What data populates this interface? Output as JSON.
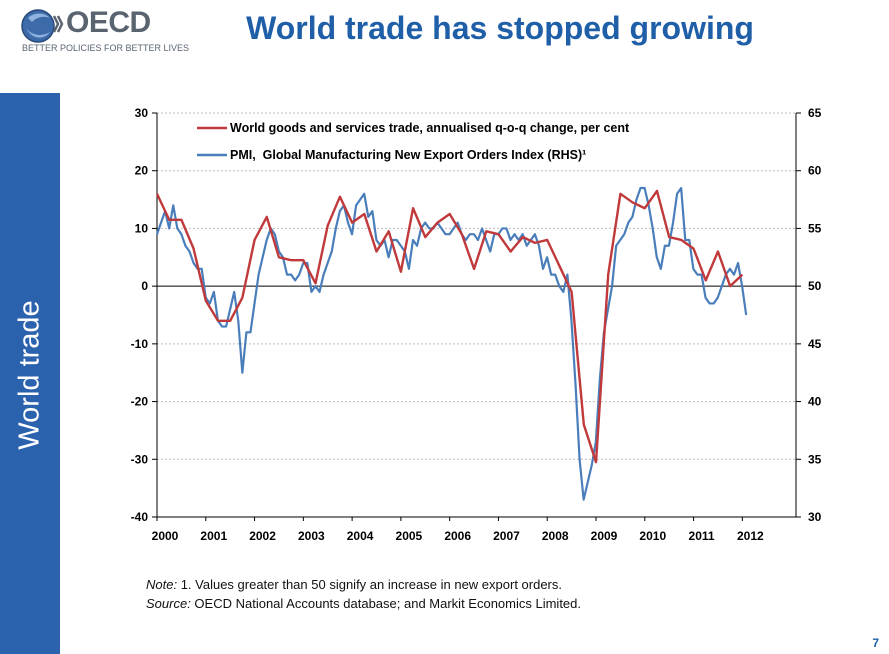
{
  "header": {
    "logo_text": "OECD",
    "logo_tagline": "BETTER POLICIES FOR BETTER LIVES",
    "title": "World trade has stopped growing"
  },
  "sidebar": {
    "label": "World trade"
  },
  "colors": {
    "red_series": "#c0393b",
    "blue_series": "#4a7ebb",
    "accent": "#2b62ad"
  },
  "chart_data": {
    "type": "line",
    "title": "",
    "xlabel": "",
    "ylabel": "",
    "x_ticks": [
      "2000",
      "2001",
      "2002",
      "2003",
      "2004",
      "2005",
      "2006",
      "2007",
      "2008",
      "2009",
      "2010",
      "2011",
      "2012"
    ],
    "y_left": {
      "min": -40,
      "max": 30,
      "ticks": [
        "30",
        "20",
        "10",
        "0",
        "-10",
        "-20",
        "-30",
        "-40"
      ]
    },
    "y_right": {
      "min": 30,
      "max": 65,
      "ticks": [
        "65",
        "60",
        "55",
        "50",
        "45",
        "40",
        "35",
        "30"
      ]
    },
    "legend_position": "top",
    "series": [
      {
        "name": "World goods and services trade, annualised q-o-q change, per cent",
        "axis": "left",
        "frequency": "quarterly",
        "x": [
          2000.0,
          2000.25,
          2000.5,
          2000.75,
          2001.0,
          2001.25,
          2001.5,
          2001.75,
          2002.0,
          2002.25,
          2002.5,
          2002.75,
          2003.0,
          2003.25,
          2003.5,
          2003.75,
          2004.0,
          2004.25,
          2004.5,
          2004.75,
          2005.0,
          2005.25,
          2005.5,
          2005.75,
          2006.0,
          2006.25,
          2006.5,
          2006.75,
          2007.0,
          2007.25,
          2007.5,
          2007.75,
          2008.0,
          2008.25,
          2008.5,
          2008.75,
          2009.0,
          2009.25,
          2009.5,
          2009.75,
          2010.0,
          2010.25,
          2010.5,
          2010.75,
          2011.0,
          2011.25,
          2011.5,
          2011.75,
          2012.0
        ],
        "values": [
          16,
          11.5,
          11.5,
          6.5,
          -2.5,
          -6,
          -6,
          -2,
          8,
          12,
          5,
          4.5,
          4.5,
          0.5,
          10.5,
          15.5,
          11,
          12.5,
          6,
          9.5,
          2.5,
          13.5,
          8.5,
          11,
          12.5,
          9,
          3,
          9.5,
          9,
          6,
          8.5,
          7.5,
          8,
          3.5,
          -1,
          -24,
          -30.5,
          2,
          16,
          14.5,
          13.5,
          16.5,
          8.5,
          8,
          6.5,
          1,
          6,
          0,
          2
        ]
      },
      {
        "name": "PMI,  Global Manufacturing New Export Orders Index (RHS)¹",
        "axis": "right",
        "frequency": "monthly",
        "x_start": 2000.0,
        "x_step": 0.0833,
        "values": [
          54.5,
          55.5,
          56.5,
          55,
          57,
          55,
          54.5,
          53.5,
          53,
          52,
          51.5,
          51.5,
          49,
          48.5,
          49.5,
          47,
          46.5,
          46.5,
          48,
          49.5,
          47,
          42.5,
          46,
          46,
          48.5,
          51,
          52.5,
          54,
          55,
          54.5,
          53,
          52.5,
          51,
          51,
          50.5,
          51,
          52,
          52,
          49.5,
          50,
          49.5,
          51,
          52,
          53,
          55,
          56.5,
          57,
          55.5,
          54.5,
          57,
          57.5,
          58,
          56,
          56.5,
          54,
          53.5,
          54,
          52.5,
          54,
          54,
          53.5,
          53,
          51.5,
          54,
          53.5,
          55,
          55.5,
          55,
          55,
          55.5,
          55,
          54.5,
          54.5,
          55,
          55.5,
          54.5,
          54,
          54.5,
          54.5,
          54,
          55,
          54,
          53,
          54.5,
          54.5,
          55,
          55,
          54,
          54.5,
          54,
          54.5,
          53.5,
          54,
          54.5,
          53.5,
          51.5,
          52.5,
          51,
          51,
          50,
          49.5,
          51,
          47,
          41.5,
          35,
          31.5,
          33,
          34.5,
          36.5,
          42,
          46,
          48,
          50,
          53.5,
          54,
          54.5,
          55.5,
          56,
          57.5,
          58.5,
          58.5,
          57,
          55,
          52.5,
          51.5,
          53.5,
          53.5,
          55.5,
          58,
          58.5,
          54,
          54,
          51.5,
          51,
          51,
          49,
          48.5,
          48.5,
          49,
          50,
          51,
          51.5,
          51,
          52,
          50,
          47.5
        ]
      }
    ]
  },
  "footnote": {
    "note_label": "Note:",
    "note_text": " 1. Values greater than 50 signify an increase in new export orders.",
    "source_label": "Source:",
    "source_text": " OECD National Accounts database; and Markit Economics Limited."
  },
  "page_number": "7"
}
